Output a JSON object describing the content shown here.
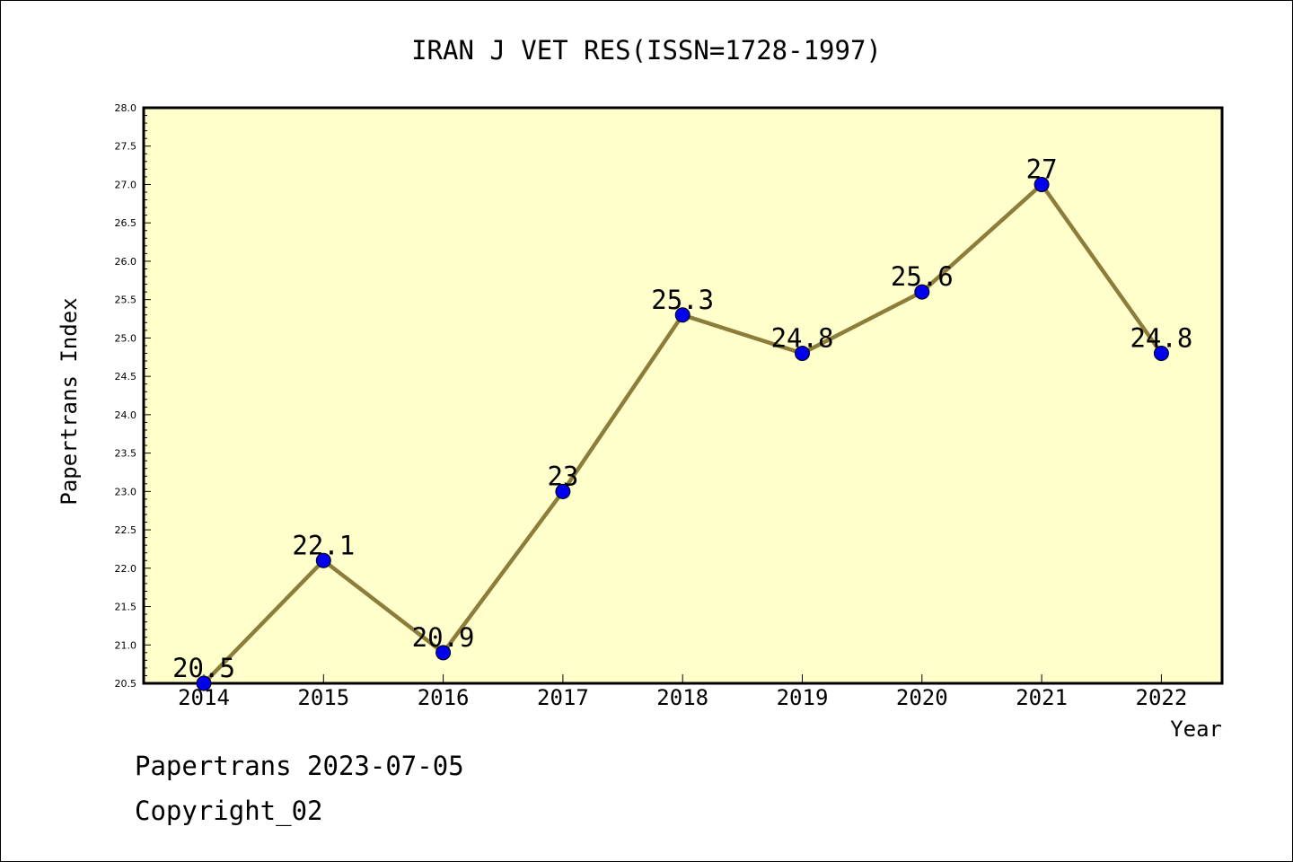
{
  "chart_data": {
    "type": "line",
    "title": "IRAN J VET RES(ISSN=1728-1997)",
    "xlabel": "Year",
    "ylabel": "Papertrans Index",
    "categories": [
      "2014",
      "2015",
      "2016",
      "2017",
      "2018",
      "2019",
      "2020",
      "2021",
      "2022"
    ],
    "series": [
      {
        "values": [
          20.5,
          22.1,
          20.9,
          23,
          25.3,
          24.8,
          25.6,
          27,
          24.8
        ]
      }
    ],
    "data_labels": [
      "20.5",
      "22.1",
      "20.9",
      "23",
      "25.3",
      "24.8",
      "25.6",
      "27",
      "24.8"
    ],
    "ylim": [
      20.5,
      28.0
    ],
    "yticks": [
      "20.5",
      "21.0",
      "21.5",
      "22.0",
      "22.5",
      "23.0",
      "23.5",
      "24.0",
      "24.5",
      "25.0",
      "25.5",
      "26.0",
      "26.5",
      "27.0",
      "27.5",
      "28.0"
    ],
    "grid": false,
    "legend": "none",
    "colors": {
      "plot_background": "#ffffcc",
      "line": "#8c7d3a",
      "marker": "#0000ee",
      "axis": "#000000"
    }
  },
  "footer": {
    "source": "Papertrans 2023-07-05",
    "copyright": "Copyright_02"
  }
}
